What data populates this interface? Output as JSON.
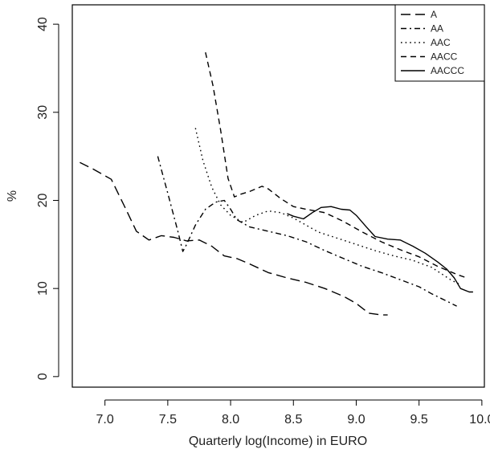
{
  "chart_data": {
    "type": "line",
    "title": "",
    "xlabel": "Quarterly log(Income) in EURO",
    "ylabel": "%",
    "xlim": [
      6.74,
      10.02
    ],
    "ylim": [
      -1.2,
      42.2
    ],
    "xticks": [
      7.0,
      7.5,
      8.0,
      8.5,
      9.0,
      9.5,
      10.0
    ],
    "xtick_labels": [
      "7.0",
      "7.5",
      "8.0",
      "8.5",
      "9.0",
      "9.5",
      "10.0"
    ],
    "yticks": [
      0,
      10,
      20,
      30,
      40
    ],
    "ytick_labels": [
      "0",
      "10",
      "20",
      "30",
      "40"
    ],
    "grid": false,
    "legend_position": "top-right",
    "series": [
      {
        "name": "A",
        "line_style": "long-dash",
        "points": [
          [
            6.8,
            24.3
          ],
          [
            6.9,
            23.6
          ],
          [
            7.05,
            22.4
          ],
          [
            7.15,
            19.5
          ],
          [
            7.25,
            16.5
          ],
          [
            7.35,
            15.5
          ],
          [
            7.45,
            16.0
          ],
          [
            7.55,
            15.8
          ],
          [
            7.65,
            15.4
          ],
          [
            7.75,
            15.5
          ],
          [
            7.85,
            14.8
          ],
          [
            7.95,
            13.7
          ],
          [
            8.05,
            13.4
          ],
          [
            8.15,
            12.8
          ],
          [
            8.3,
            11.8
          ],
          [
            8.45,
            11.2
          ],
          [
            8.6,
            10.7
          ],
          [
            8.75,
            10.0
          ],
          [
            8.9,
            9.1
          ],
          [
            9.0,
            8.3
          ],
          [
            9.1,
            7.2
          ],
          [
            9.2,
            7.0
          ],
          [
            9.25,
            7.0
          ]
        ]
      },
      {
        "name": "AA",
        "line_style": "dash-dot",
        "points": [
          [
            7.42,
            25.0
          ],
          [
            7.5,
            20.8
          ],
          [
            7.58,
            16.5
          ],
          [
            7.62,
            14.2
          ],
          [
            7.65,
            15.0
          ],
          [
            7.72,
            17.2
          ],
          [
            7.8,
            19.0
          ],
          [
            7.88,
            19.8
          ],
          [
            7.95,
            20.0
          ],
          [
            8.0,
            19.0
          ],
          [
            8.05,
            17.8
          ],
          [
            8.15,
            17.0
          ],
          [
            8.3,
            16.5
          ],
          [
            8.45,
            16.0
          ],
          [
            8.6,
            15.3
          ],
          [
            8.75,
            14.3
          ],
          [
            8.9,
            13.4
          ],
          [
            9.05,
            12.5
          ],
          [
            9.2,
            11.8
          ],
          [
            9.35,
            11.0
          ],
          [
            9.5,
            10.2
          ],
          [
            9.6,
            9.4
          ],
          [
            9.7,
            8.7
          ],
          [
            9.8,
            8.0
          ]
        ]
      },
      {
        "name": "AAC",
        "line_style": "dotted",
        "points": [
          [
            7.72,
            28.2
          ],
          [
            7.78,
            24.5
          ],
          [
            7.85,
            21.5
          ],
          [
            7.92,
            19.5
          ],
          [
            8.0,
            18.3
          ],
          [
            8.1,
            17.5
          ],
          [
            8.2,
            18.3
          ],
          [
            8.3,
            18.8
          ],
          [
            8.4,
            18.6
          ],
          [
            8.5,
            18.0
          ],
          [
            8.6,
            17.2
          ],
          [
            8.7,
            16.4
          ],
          [
            8.85,
            15.7
          ],
          [
            9.0,
            15.0
          ],
          [
            9.15,
            14.3
          ],
          [
            9.3,
            13.7
          ],
          [
            9.45,
            13.2
          ],
          [
            9.6,
            12.4
          ],
          [
            9.75,
            11.0
          ],
          [
            9.82,
            10.5
          ]
        ]
      },
      {
        "name": "AACC",
        "line_style": "short-dash",
        "points": [
          [
            7.8,
            36.8
          ],
          [
            7.86,
            33.0
          ],
          [
            7.92,
            28.0
          ],
          [
            7.98,
            22.5
          ],
          [
            8.03,
            20.4
          ],
          [
            8.08,
            20.7
          ],
          [
            8.15,
            21.0
          ],
          [
            8.25,
            21.6
          ],
          [
            8.3,
            21.3
          ],
          [
            8.4,
            20.2
          ],
          [
            8.5,
            19.3
          ],
          [
            8.6,
            19.0
          ],
          [
            8.75,
            18.6
          ],
          [
            8.9,
            17.6
          ],
          [
            9.05,
            16.4
          ],
          [
            9.2,
            15.3
          ],
          [
            9.35,
            14.4
          ],
          [
            9.5,
            13.6
          ],
          [
            9.65,
            12.5
          ],
          [
            9.8,
            11.6
          ],
          [
            9.88,
            11.2
          ]
        ]
      },
      {
        "name": "AACCC",
        "line_style": "solid",
        "points": [
          [
            8.45,
            18.5
          ],
          [
            8.5,
            18.2
          ],
          [
            8.58,
            17.9
          ],
          [
            8.65,
            18.6
          ],
          [
            8.72,
            19.2
          ],
          [
            8.8,
            19.3
          ],
          [
            8.88,
            19.0
          ],
          [
            8.95,
            18.9
          ],
          [
            9.0,
            18.3
          ],
          [
            9.08,
            17.0
          ],
          [
            9.15,
            15.9
          ],
          [
            9.25,
            15.6
          ],
          [
            9.35,
            15.5
          ],
          [
            9.45,
            14.8
          ],
          [
            9.55,
            14.0
          ],
          [
            9.65,
            13.0
          ],
          [
            9.72,
            12.2
          ],
          [
            9.78,
            11.2
          ],
          [
            9.83,
            10.0
          ],
          [
            9.9,
            9.6
          ],
          [
            9.93,
            9.6
          ]
        ]
      }
    ]
  }
}
